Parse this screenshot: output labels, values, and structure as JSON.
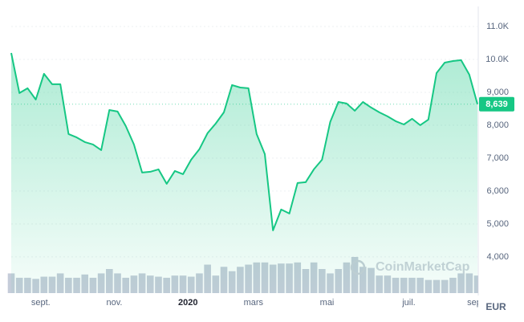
{
  "chart_data": {
    "type": "line",
    "color": "#16c784",
    "values": [
      10195,
      8976,
      9122,
      8780,
      9561,
      9244,
      9244,
      7732,
      7630,
      7488,
      7415,
      7244,
      8463,
      8415,
      7976,
      7415,
      6561,
      6585,
      6659,
      6220,
      6610,
      6512,
      6951,
      7268,
      7756,
      8049,
      8390,
      9220,
      9146,
      9122,
      7732,
      7122,
      4805,
      5439,
      5317,
      6244,
      6268,
      6659,
      6951,
      8098,
      8707,
      8659,
      8439,
      8707,
      8537,
      8390,
      8268,
      8122,
      8024,
      8195,
      8000,
      8171,
      9585,
      9902,
      9951,
      9976,
      9537,
      8639
    ],
    "categories": [
      null,
      null,
      null,
      null,
      "sept.",
      null,
      null,
      null,
      null,
      null,
      null,
      null,
      null,
      "nov.",
      null,
      null,
      null,
      null,
      null,
      null,
      null,
      null,
      "2020",
      null,
      null,
      null,
      null,
      null,
      null,
      null,
      "mars",
      null,
      null,
      null,
      null,
      null,
      null,
      null,
      null,
      "mai",
      null,
      null,
      null,
      null,
      null,
      null,
      null,
      null,
      null,
      "juil.",
      null,
      null,
      null,
      null,
      null,
      null,
      null,
      "sep"
    ],
    "volume": [
      18,
      14,
      14,
      13,
      15,
      15,
      18,
      14,
      14,
      17,
      14,
      18,
      22,
      18,
      14,
      16,
      18,
      16,
      15,
      14,
      16,
      16,
      15,
      18,
      26,
      16,
      24,
      20,
      24,
      26,
      28,
      28,
      26,
      27,
      27,
      28,
      22,
      28,
      22,
      18,
      22,
      28,
      33,
      24,
      23,
      16,
      16,
      14,
      14,
      14,
      14,
      12,
      12,
      12,
      14,
      18,
      18,
      16
    ],
    "volume_color": "#c5ccd9",
    "ylim": [
      2900,
      11560
    ],
    "yticks": [
      {
        "value": 4000,
        "label": "4,000"
      },
      {
        "value": 5000,
        "label": "5,000"
      },
      {
        "value": 6000,
        "label": "6,000"
      },
      {
        "value": 7000,
        "label": "7,000"
      },
      {
        "value": 8000,
        "label": "8,000"
      },
      {
        "value": 9000,
        "label": "9,000"
      },
      {
        "value": 10000,
        "label": "10.0K"
      },
      {
        "value": 11000,
        "label": "11.0K"
      }
    ],
    "grid": true,
    "current_price": {
      "value": 8639,
      "label": "8,639"
    },
    "currency": "EUR",
    "watermark": "CoinMarketCap"
  }
}
